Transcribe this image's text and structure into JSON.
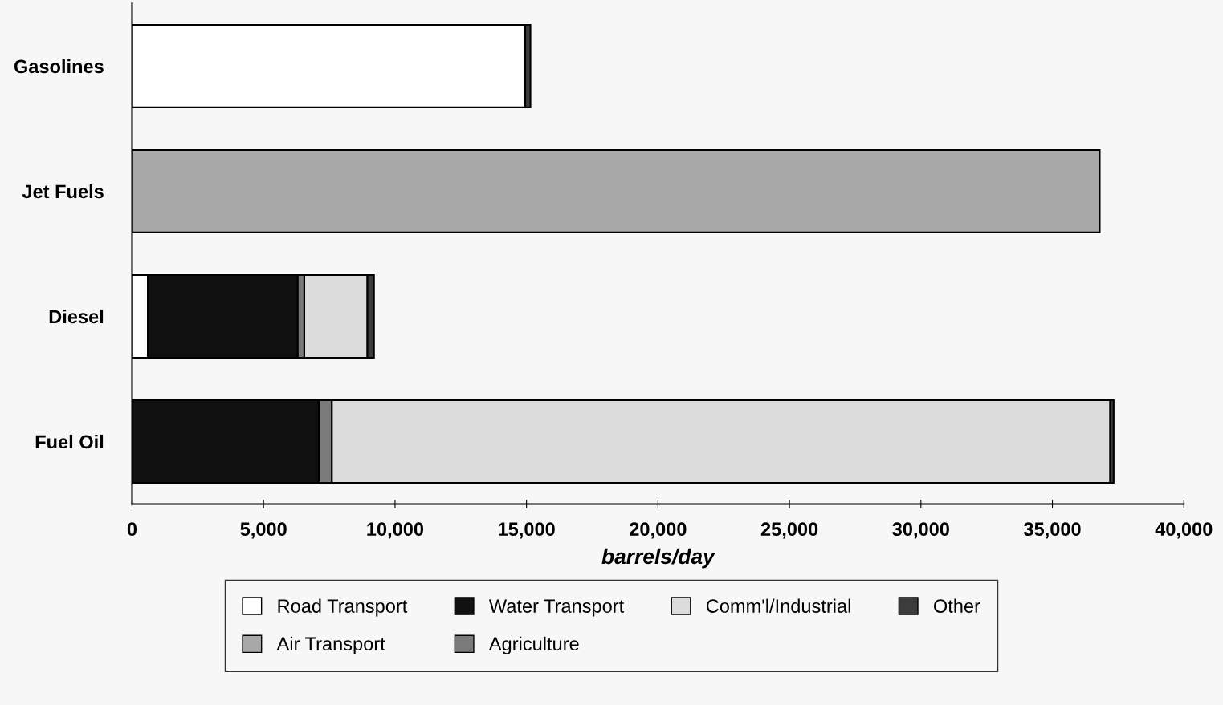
{
  "chart_data": {
    "type": "bar",
    "orientation": "horizontal",
    "stacked": true,
    "xlabel": "barrels/day",
    "categories": [
      "Gasolines",
      "Jet Fuels",
      "Diesel",
      "Fuel Oil"
    ],
    "series": [
      {
        "name": "Road Transport",
        "color": "#ffffff",
        "values": [
          14950,
          0,
          600,
          0
        ]
      },
      {
        "name": "Air Transport",
        "color": "#a8a8a8",
        "values": [
          0,
          36800,
          0,
          0
        ]
      },
      {
        "name": "Water Transport",
        "color": "#111111",
        "values": [
          0,
          0,
          5700,
          7100
        ]
      },
      {
        "name": "Agriculture",
        "color": "#7a7a7a",
        "values": [
          0,
          0,
          250,
          500
        ]
      },
      {
        "name": "Comm'l/Industrial",
        "color": "#dcdcdc",
        "values": [
          0,
          0,
          2400,
          29600
        ]
      },
      {
        "name": "Other",
        "color": "#3c3c3c",
        "values": [
          200,
          0,
          250,
          130
        ]
      }
    ],
    "xlim": [
      0,
      40000
    ],
    "xticks": [
      {
        "value": 0,
        "label": "0"
      },
      {
        "value": 5000,
        "label": "5,000"
      },
      {
        "value": 10000,
        "label": "10,000"
      },
      {
        "value": 15000,
        "label": "15,000"
      },
      {
        "value": 20000,
        "label": "20,000"
      },
      {
        "value": 25000,
        "label": "25,000"
      },
      {
        "value": 30000,
        "label": "30,000"
      },
      {
        "value": 35000,
        "label": "35,000"
      },
      {
        "value": 40000,
        "label": "40,000"
      }
    ],
    "legend": "bottom"
  }
}
